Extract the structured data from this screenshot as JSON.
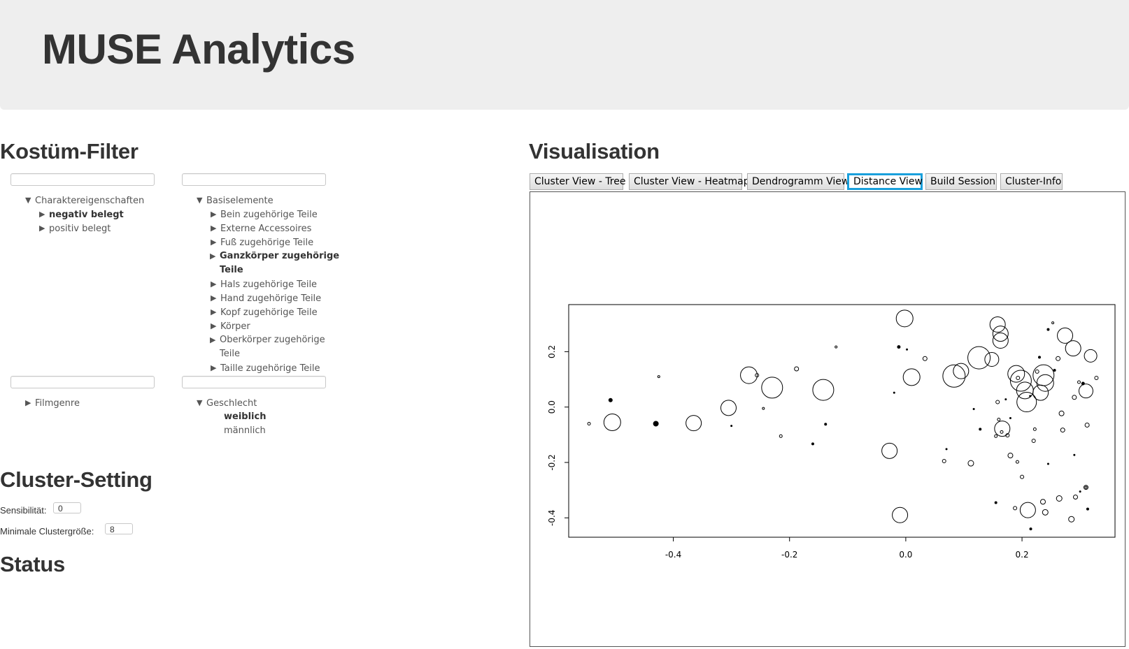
{
  "header": {
    "title": "MUSE Analytics"
  },
  "filter": {
    "heading": "Kostüm-Filter",
    "tree1": {
      "root": "Charaktereigenschaften",
      "children": [
        "negativ belegt",
        "positiv belegt"
      ]
    },
    "tree2": {
      "root": "Basiselemente",
      "children": [
        "Bein zugehörige Teile",
        "Externe Accessoires",
        "Fuß zugehörige Teile",
        "Ganzkörper zugehörige Teile",
        "Hals zugehörige Teile",
        "Hand zugehörige Teile",
        "Kopf zugehörige Teile",
        "Körper",
        "Oberkörper zugehörige Teile",
        "Taille zugehörige Teile"
      ]
    },
    "tree3": {
      "root": "Filmgenre"
    },
    "tree4": {
      "root": "Geschlecht",
      "children": [
        "weiblich",
        "männlich"
      ]
    }
  },
  "cluster_setting": {
    "heading": "Cluster-Setting",
    "sensibility_label": "Sensibilität:",
    "sensibility_value": "0",
    "min_size_label": "Minimale Clustergröße:",
    "min_size_value": "8"
  },
  "status": {
    "heading": "Status"
  },
  "visualisation": {
    "heading": "Visualisation",
    "tabs": [
      "Cluster View - Tree",
      "Cluster View - Heatmap",
      "Dendrogramm View",
      "Distance View",
      "Build Session",
      "Cluster-Info"
    ],
    "active_tab": "Distance View"
  },
  "chart_data": {
    "type": "scatter",
    "xlim": [
      -0.58,
      0.36
    ],
    "ylim": [
      -0.47,
      0.37
    ],
    "xticks": [
      "-0.4",
      "-0.2",
      "0.0",
      "0.2"
    ],
    "yticks": [
      "-0.4",
      "-0.2",
      "0.0",
      "0.2"
    ],
    "xtick_values": [
      -0.4,
      -0.2,
      0.0,
      0.2
    ],
    "ytick_values": [
      -0.4,
      -0.2,
      0.0,
      0.2
    ],
    "points": [
      {
        "x": -0.545,
        "y": -0.06,
        "s": 2,
        "filled": false
      },
      {
        "x": -0.505,
        "y": -0.055,
        "s": 12,
        "filled": false
      },
      {
        "x": -0.508,
        "y": 0.025,
        "s": 2.5,
        "filled": true
      },
      {
        "x": -0.43,
        "y": -0.06,
        "s": 3.5,
        "filled": true
      },
      {
        "x": -0.425,
        "y": 0.11,
        "s": 1.5,
        "filled": false
      },
      {
        "x": -0.365,
        "y": -0.058,
        "s": 11,
        "filled": false
      },
      {
        "x": -0.305,
        "y": -0.003,
        "s": 11,
        "filled": false
      },
      {
        "x": -0.3,
        "y": -0.068,
        "s": 1,
        "filled": true
      },
      {
        "x": -0.27,
        "y": 0.115,
        "s": 12,
        "filled": false
      },
      {
        "x": -0.256,
        "y": 0.115,
        "s": 2.5,
        "filled": false
      },
      {
        "x": -0.23,
        "y": 0.07,
        "s": 15,
        "filled": false
      },
      {
        "x": -0.245,
        "y": -0.005,
        "s": 1.5,
        "filled": false
      },
      {
        "x": -0.215,
        "y": -0.105,
        "s": 2,
        "filled": false
      },
      {
        "x": -0.188,
        "y": 0.138,
        "s": 3,
        "filled": false
      },
      {
        "x": -0.142,
        "y": 0.062,
        "s": 15,
        "filled": false
      },
      {
        "x": -0.16,
        "y": -0.133,
        "s": 1.5,
        "filled": true
      },
      {
        "x": -0.138,
        "y": -0.062,
        "s": 1.5,
        "filled": true
      },
      {
        "x": -0.12,
        "y": 0.217,
        "s": 1.5,
        "filled": false
      },
      {
        "x": -0.02,
        "y": 0.052,
        "s": 1,
        "filled": true
      },
      {
        "x": -0.012,
        "y": 0.217,
        "s": 2,
        "filled": true
      },
      {
        "x": -0.028,
        "y": -0.158,
        "s": 11,
        "filled": false
      },
      {
        "x": -0.01,
        "y": -0.39,
        "s": 11,
        "filled": false
      },
      {
        "x": -0.002,
        "y": 0.32,
        "s": 12,
        "filled": false
      },
      {
        "x": 0.002,
        "y": 0.208,
        "s": 1,
        "filled": true
      },
      {
        "x": 0.01,
        "y": 0.108,
        "s": 12,
        "filled": false
      },
      {
        "x": 0.033,
        "y": 0.175,
        "s": 3,
        "filled": false
      },
      {
        "x": 0.066,
        "y": -0.195,
        "s": 2.5,
        "filled": false
      },
      {
        "x": 0.07,
        "y": -0.152,
        "s": 1,
        "filled": true
      },
      {
        "x": 0.083,
        "y": 0.112,
        "s": 16,
        "filled": false
      },
      {
        "x": 0.095,
        "y": 0.13,
        "s": 11,
        "filled": false
      },
      {
        "x": 0.112,
        "y": -0.203,
        "s": 4,
        "filled": false
      },
      {
        "x": 0.117,
        "y": -0.007,
        "s": 1,
        "filled": true
      },
      {
        "x": 0.126,
        "y": 0.178,
        "s": 16,
        "filled": false
      },
      {
        "x": 0.128,
        "y": -0.08,
        "s": 1.5,
        "filled": true
      },
      {
        "x": 0.148,
        "y": 0.172,
        "s": 10,
        "filled": false
      },
      {
        "x": 0.155,
        "y": -0.105,
        "s": 2,
        "filled": false
      },
      {
        "x": 0.158,
        "y": 0.298,
        "s": 11,
        "filled": false
      },
      {
        "x": 0.163,
        "y": 0.265,
        "s": 11,
        "filled": false
      },
      {
        "x": 0.163,
        "y": 0.24,
        "s": 11,
        "filled": false
      },
      {
        "x": 0.158,
        "y": 0.018,
        "s": 2.5,
        "filled": false
      },
      {
        "x": 0.16,
        "y": -0.045,
        "s": 2,
        "filled": false
      },
      {
        "x": 0.165,
        "y": -0.09,
        "s": 2,
        "filled": false
      },
      {
        "x": 0.166,
        "y": -0.078,
        "s": 11,
        "filled": false
      },
      {
        "x": 0.172,
        "y": 0.028,
        "s": 1,
        "filled": true
      },
      {
        "x": 0.175,
        "y": -0.102,
        "s": 2.5,
        "filled": false
      },
      {
        "x": 0.18,
        "y": -0.175,
        "s": 3.5,
        "filled": false
      },
      {
        "x": 0.18,
        "y": -0.04,
        "s": 1,
        "filled": true
      },
      {
        "x": 0.19,
        "y": 0.12,
        "s": 12,
        "filled": false
      },
      {
        "x": 0.193,
        "y": 0.105,
        "s": 2.5,
        "filled": false
      },
      {
        "x": 0.188,
        "y": -0.365,
        "s": 2.5,
        "filled": false
      },
      {
        "x": 0.192,
        "y": -0.198,
        "s": 2,
        "filled": false
      },
      {
        "x": 0.198,
        "y": 0.095,
        "s": 15,
        "filled": false
      },
      {
        "x": 0.2,
        "y": -0.252,
        "s": 2.5,
        "filled": false
      },
      {
        "x": 0.205,
        "y": 0.06,
        "s": 12,
        "filled": false
      },
      {
        "x": 0.208,
        "y": 0.018,
        "s": 14,
        "filled": false
      },
      {
        "x": 0.21,
        "y": -0.372,
        "s": 11,
        "filled": false
      },
      {
        "x": 0.214,
        "y": 0.04,
        "s": 1,
        "filled": true
      },
      {
        "x": 0.22,
        "y": -0.122,
        "s": 2.5,
        "filled": false
      },
      {
        "x": 0.222,
        "y": -0.08,
        "s": 2,
        "filled": false
      },
      {
        "x": 0.226,
        "y": 0.128,
        "s": 2.5,
        "filled": false
      },
      {
        "x": 0.23,
        "y": 0.18,
        "s": 1.5,
        "filled": true
      },
      {
        "x": 0.232,
        "y": 0.052,
        "s": 11,
        "filled": false
      },
      {
        "x": 0.236,
        "y": -0.342,
        "s": 3.5,
        "filled": false
      },
      {
        "x": 0.237,
        "y": 0.115,
        "s": 15,
        "filled": false
      },
      {
        "x": 0.24,
        "y": 0.087,
        "s": 12,
        "filled": false
      },
      {
        "x": 0.24,
        "y": -0.38,
        "s": 4,
        "filled": false
      },
      {
        "x": 0.245,
        "y": 0.28,
        "s": 1.5,
        "filled": true
      },
      {
        "x": 0.253,
        "y": 0.304,
        "s": 1.5,
        "filled": false
      },
      {
        "x": 0.256,
        "y": 0.133,
        "s": 1.5,
        "filled": true
      },
      {
        "x": 0.262,
        "y": 0.175,
        "s": 3,
        "filled": false
      },
      {
        "x": 0.264,
        "y": -0.33,
        "s": 4,
        "filled": false
      },
      {
        "x": 0.268,
        "y": -0.023,
        "s": 3.5,
        "filled": false
      },
      {
        "x": 0.27,
        "y": -0.083,
        "s": 3,
        "filled": false
      },
      {
        "x": 0.274,
        "y": 0.258,
        "s": 11,
        "filled": false
      },
      {
        "x": 0.288,
        "y": 0.212,
        "s": 11,
        "filled": false
      },
      {
        "x": 0.29,
        "y": 0.035,
        "s": 3,
        "filled": false
      },
      {
        "x": 0.29,
        "y": -0.173,
        "s": 1,
        "filled": true
      },
      {
        "x": 0.285,
        "y": -0.405,
        "s": 4,
        "filled": false
      },
      {
        "x": 0.292,
        "y": -0.325,
        "s": 3,
        "filled": false
      },
      {
        "x": 0.298,
        "y": 0.09,
        "s": 2,
        "filled": false
      },
      {
        "x": 0.305,
        "y": 0.085,
        "s": 2,
        "filled": true
      },
      {
        "x": 0.31,
        "y": 0.058,
        "s": 10,
        "filled": false
      },
      {
        "x": 0.31,
        "y": -0.29,
        "s": 3,
        "filled": false
      },
      {
        "x": 0.31,
        "y": -0.29,
        "s": 1.5,
        "filled": false
      },
      {
        "x": 0.312,
        "y": -0.065,
        "s": 3,
        "filled": false
      },
      {
        "x": 0.313,
        "y": -0.368,
        "s": 1.5,
        "filled": true
      },
      {
        "x": 0.318,
        "y": 0.185,
        "s": 9,
        "filled": false
      },
      {
        "x": 0.328,
        "y": 0.105,
        "s": 2.5,
        "filled": false
      },
      {
        "x": 0.215,
        "y": -0.44,
        "s": 1.5,
        "filled": true
      },
      {
        "x": 0.155,
        "y": -0.345,
        "s": 1.5,
        "filled": true
      },
      {
        "x": 0.3,
        "y": -0.305,
        "s": 1,
        "filled": true
      },
      {
        "x": 0.245,
        "y": -0.205,
        "s": 1,
        "filled": true
      }
    ]
  }
}
